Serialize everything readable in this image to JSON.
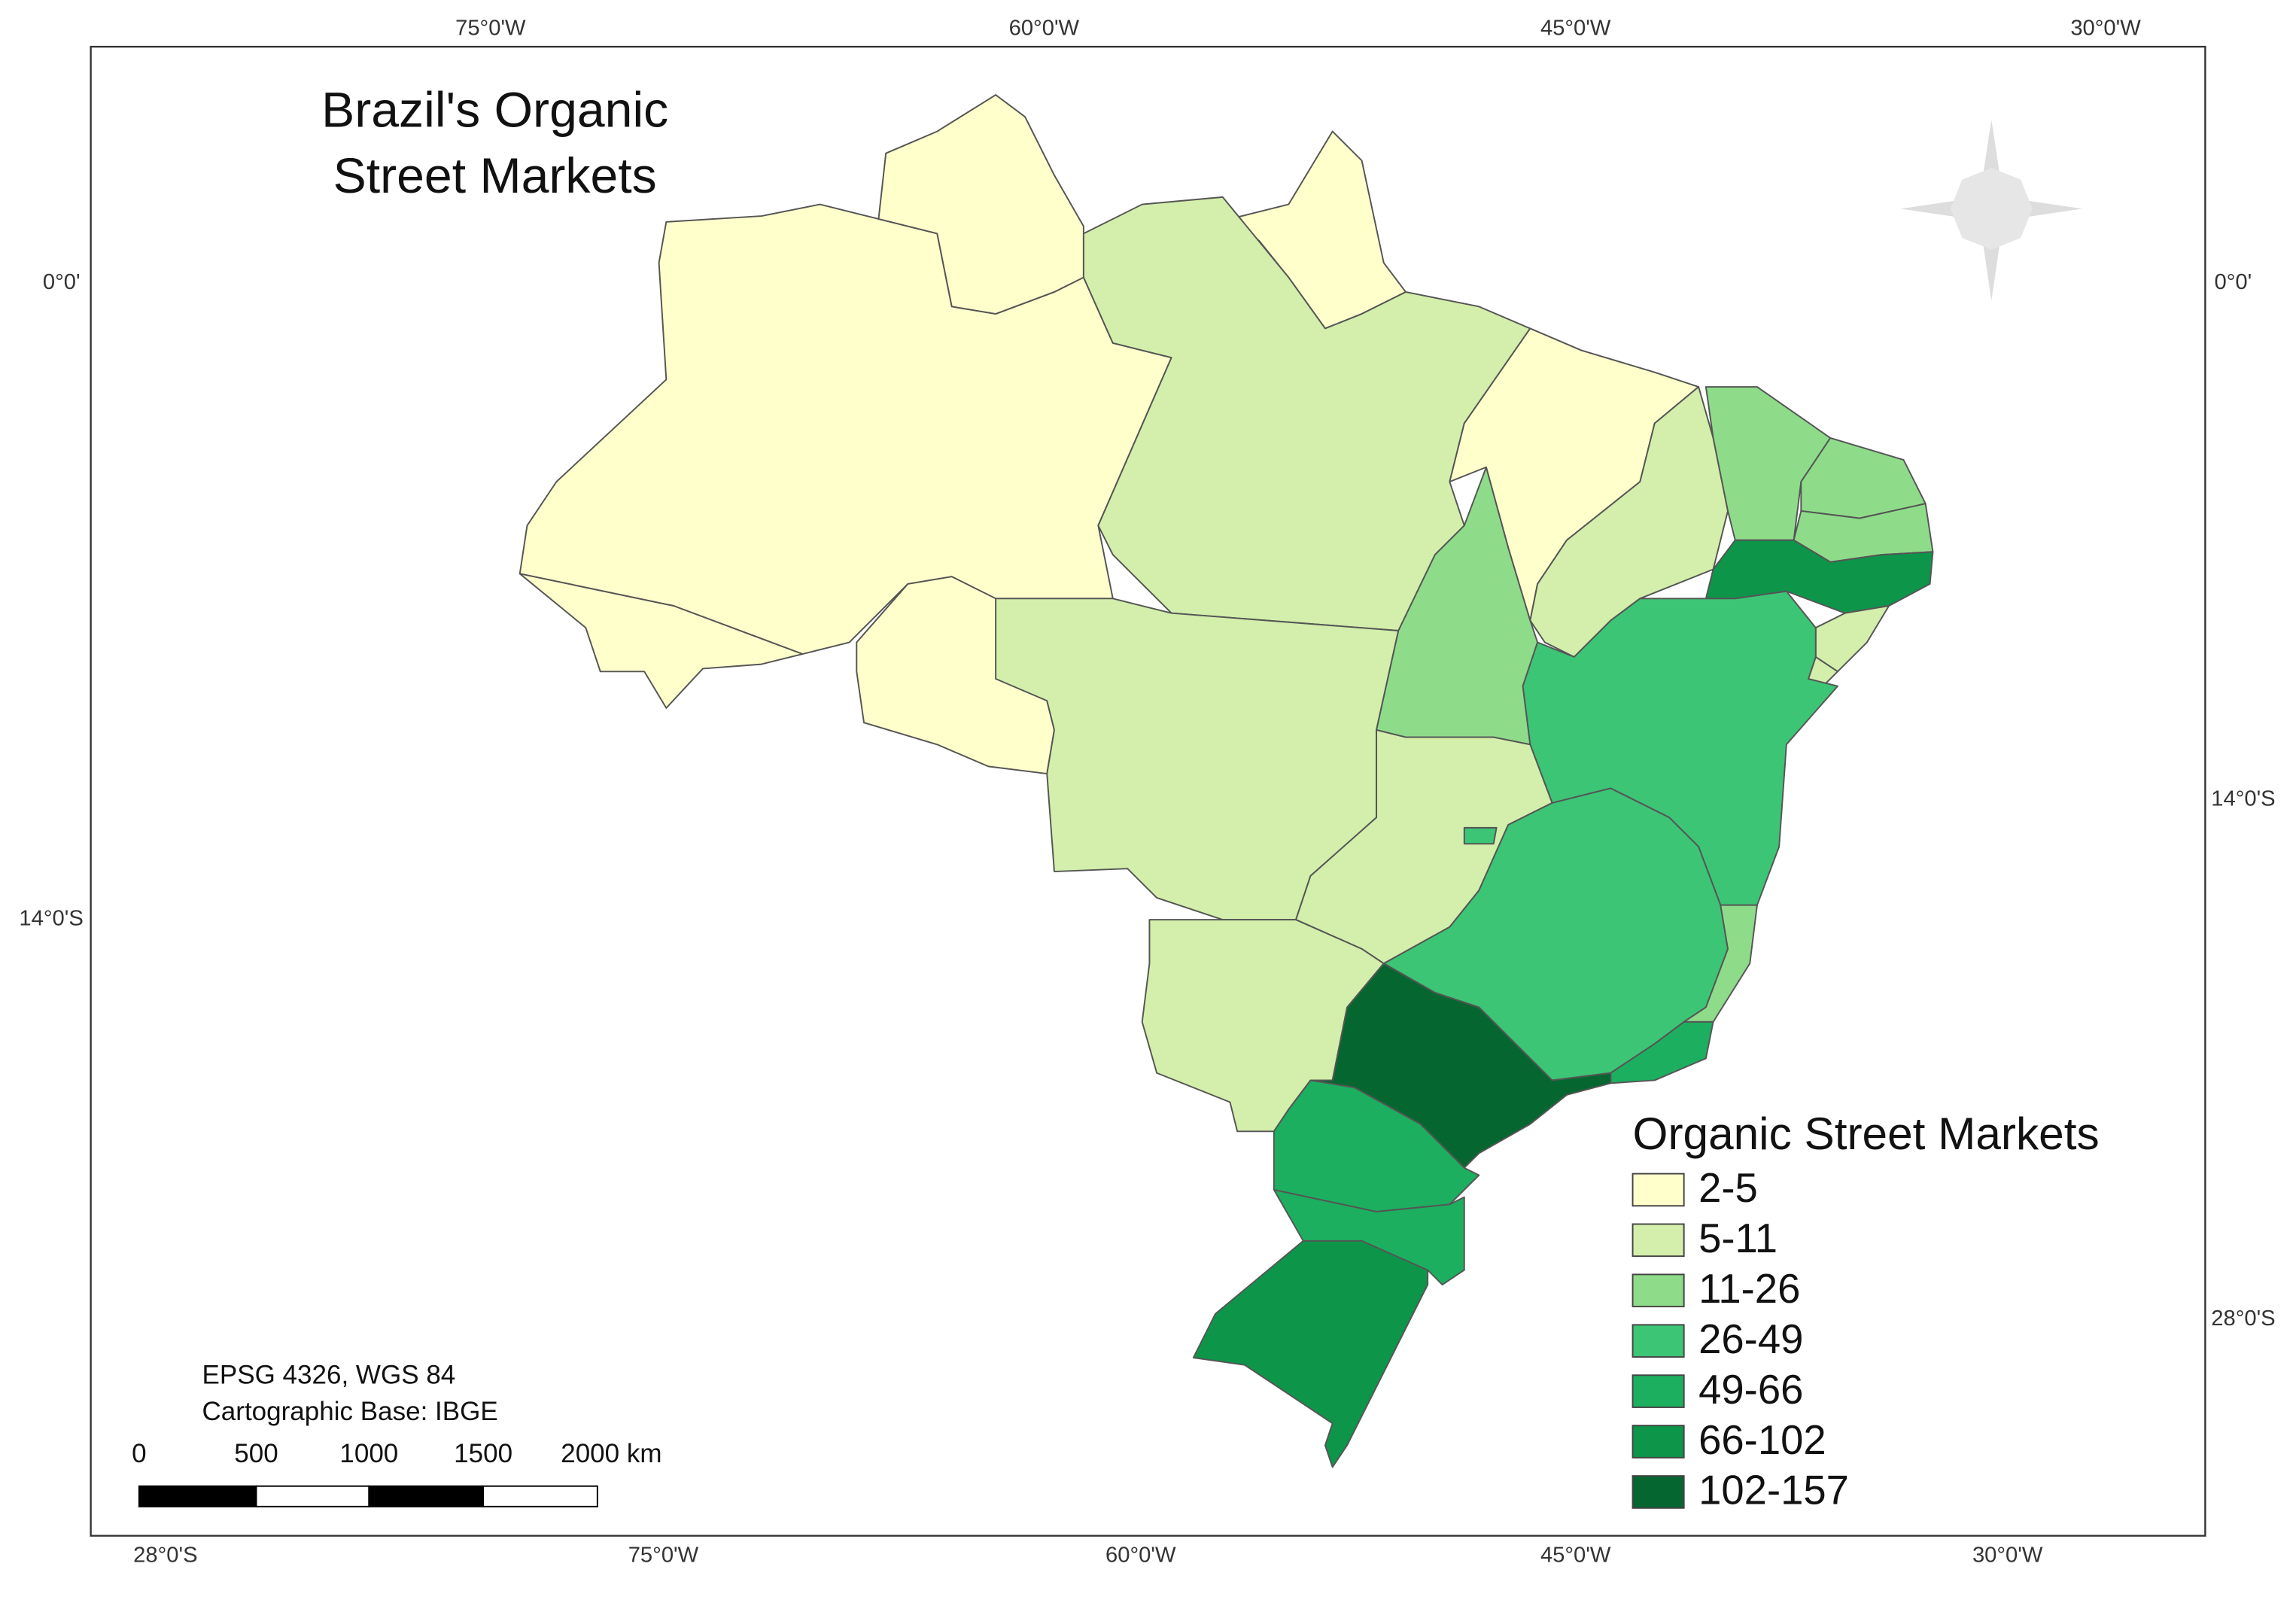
{
  "title_lines": [
    "Brazil's Organic",
    "Street Markets"
  ],
  "legend": {
    "title": "Organic Street Markets",
    "items": [
      {
        "label": "2-5",
        "color": "#ffffcc"
      },
      {
        "label": "5-11",
        "color": "#d3efab"
      },
      {
        "label": "11-26",
        "color": "#8edc8a"
      },
      {
        "label": "26-49",
        "color": "#3cc575"
      },
      {
        "label": "49-66",
        "color": "#1caf5f"
      },
      {
        "label": "66-102",
        "color": "#0d954a"
      },
      {
        "label": "102-157",
        "color": "#05672f"
      }
    ]
  },
  "graticule": {
    "top": [
      "75°0'W",
      "60°0'W",
      "45°0'W",
      "30°0'W"
    ],
    "bottom": [
      "28°0'S",
      "75°0'W",
      "60°0'W",
      "45°0'W",
      "30°0'W"
    ],
    "left": [
      "0°0'",
      "14°0'S"
    ],
    "right": [
      "0°0'",
      "14°0'S",
      "28°0'S"
    ]
  },
  "notes": [
    "EPSG 4326, WGS 84",
    "Cartographic Base: IBGE"
  ],
  "scale_bar": {
    "labels": [
      "0",
      "500",
      "1000",
      "1500",
      "2000 km"
    ]
  }
}
